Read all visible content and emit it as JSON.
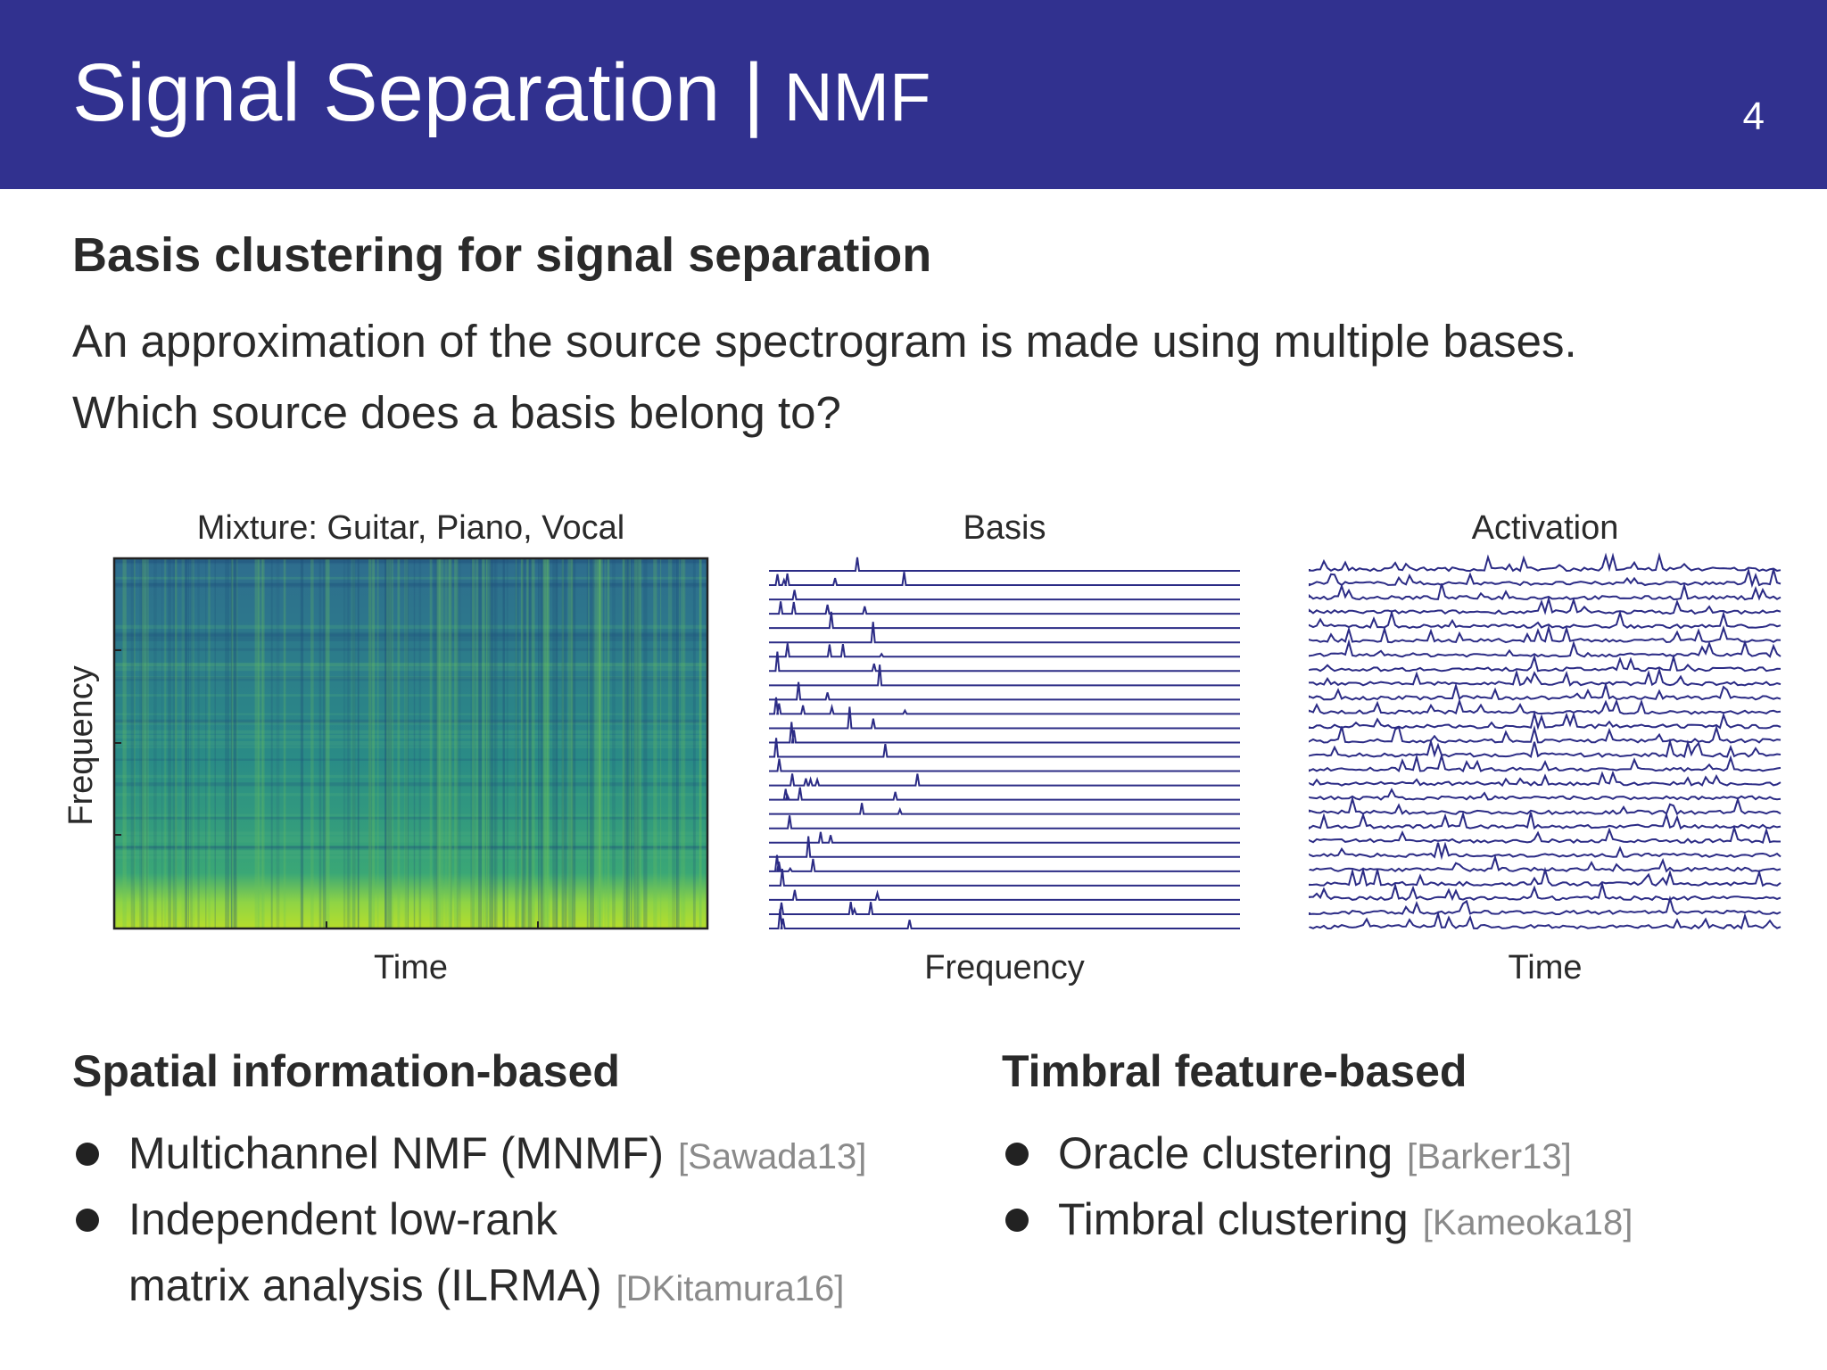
{
  "header": {
    "title": "Signal Separation |",
    "subtitle": "NMF",
    "page_number": 4
  },
  "section": {
    "heading": "Basis clustering for signal separation",
    "lines": [
      "An approximation of the source spectrogram is made using multiple bases.",
      "Which source does a basis belong to?"
    ]
  },
  "figures": [
    {
      "title": "Mixture: Guitar, Piano, Vocal",
      "xlabel": "Time",
      "ylabel": "Frequency"
    },
    {
      "title": "Basis",
      "xlabel": "Frequency"
    },
    {
      "title": "Activation",
      "xlabel": "Time"
    }
  ],
  "columns": [
    {
      "heading": "Spatial information-based",
      "items": [
        {
          "lines": [
            "Multichannel NMF (MNMF)"
          ],
          "cite": "[Sawada13]"
        },
        {
          "lines": [
            "Independent low-rank",
            "matrix analysis (ILRMA)"
          ],
          "cite": "[DKitamura16]"
        }
      ]
    },
    {
      "heading": "Timbral feature-based",
      "items": [
        {
          "lines": [
            "Oracle clustering"
          ],
          "cite": "[Barker13]"
        },
        {
          "lines": [
            "Timbral clustering"
          ],
          "cite": "[Kameoka18]"
        }
      ]
    }
  ]
}
